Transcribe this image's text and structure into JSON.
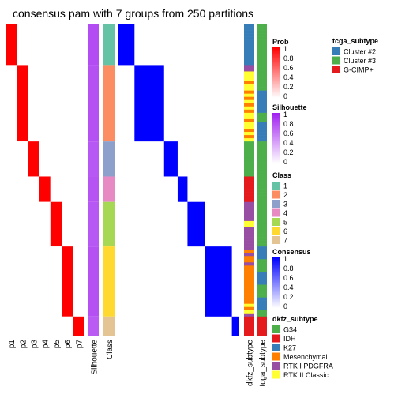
{
  "chart_data": {
    "type": "heatmap",
    "title": "consensus pam with 7 groups from 250 partitions",
    "columns": [
      "p1",
      "p2",
      "p3",
      "p4",
      "p5",
      "p6",
      "p7",
      "Silhouette",
      "Class",
      "dkfz_subtype",
      "tcga_subtype"
    ],
    "groups": [
      {
        "class": "1",
        "p": [
          1,
          0,
          0,
          0,
          0,
          0,
          0
        ],
        "silhouette": 0.8,
        "rows": 13
      },
      {
        "class": "2",
        "p": [
          0,
          1,
          0,
          0,
          0,
          0,
          0
        ],
        "silhouette": 0.78,
        "rows": 24
      },
      {
        "class": "3",
        "p": [
          0,
          0,
          1,
          0,
          0,
          0,
          0
        ],
        "silhouette": 0.75,
        "rows": 11
      },
      {
        "class": "4",
        "p": [
          0,
          0,
          0,
          1,
          0,
          0,
          0
        ],
        "silhouette": 0.77,
        "rows": 8
      },
      {
        "class": "5",
        "p": [
          0,
          0,
          0,
          0,
          1,
          0,
          0
        ],
        "silhouette": 0.75,
        "rows": 14
      },
      {
        "class": "6",
        "p": [
          0,
          0,
          0,
          0,
          0,
          1,
          0
        ],
        "silhouette": 0.78,
        "rows": 22
      },
      {
        "class": "7",
        "p": [
          0,
          0,
          0,
          0,
          0,
          0,
          1
        ],
        "silhouette": 0.73,
        "rows": 6
      }
    ],
    "dkfz_sequence": [
      "K27",
      "K27",
      "K27",
      "K27",
      "K27",
      "K27",
      "K27",
      "K27",
      "K27",
      "K27",
      "K27",
      "K27",
      "K27",
      "RTK I PDGFRA",
      "RTK I PDGFRA",
      "RTK II Classic",
      "RTK II Classic",
      "RTK II Classic",
      "Mesenchymal",
      "RTK II Classic",
      "RTK II Classic",
      "Mesenchymal",
      "RTK II Classic",
      "Mesenchymal",
      "RTK II Classic",
      "Mesenchymal",
      "RTK II Classic",
      "Mesenchymal",
      "RTK II Classic",
      "RTK II Classic",
      "Mesenchymal",
      "RTK II Classic",
      "RTK II Classic",
      "Mesenchymal",
      "RTK II Classic",
      "Mesenchymal",
      "RTK II Classic",
      "G34",
      "G34",
      "G34",
      "G34",
      "G34",
      "G34",
      "G34",
      "G34",
      "G34",
      "G34",
      "G34",
      "IDH",
      "IDH",
      "IDH",
      "IDH",
      "IDH",
      "IDH",
      "IDH",
      "IDH",
      "RTK I PDGFRA",
      "RTK I PDGFRA",
      "RTK I PDGFRA",
      "RTK I PDGFRA",
      "RTK I PDGFRA",
      "RTK I PDGFRA",
      "RTK II Classic",
      "RTK II Classic",
      "RTK I PDGFRA",
      "RTK I PDGFRA",
      "RTK I PDGFRA",
      "RTK I PDGFRA",
      "RTK I PDGFRA",
      "RTK I PDGFRA",
      "RTK I PDGFRA",
      "Mesenchymal",
      "RTK I PDGFRA",
      "Mesenchymal",
      "Mesenchymal",
      "RTK I PDGFRA",
      "Mesenchymal",
      "Mesenchymal",
      "Mesenchymal",
      "Mesenchymal",
      "Mesenchymal",
      "Mesenchymal",
      "Mesenchymal",
      "Mesenchymal",
      "Mesenchymal",
      "Mesenchymal",
      "Mesenchymal",
      "Mesenchymal",
      "RTK II Classic",
      "Mesenchymal",
      "RTK II Classic",
      "RTK I PDGFRA",
      "IDH",
      "IDH",
      "IDH",
      "IDH",
      "IDH",
      "IDH"
    ],
    "tcga_sequence": [
      "Cluster #3",
      "Cluster #3",
      "Cluster #3",
      "Cluster #3",
      "Cluster #3",
      "Cluster #3",
      "Cluster #3",
      "Cluster #3",
      "Cluster #3",
      "Cluster #3",
      "Cluster #3",
      "Cluster #3",
      "Cluster #3",
      "Cluster #3",
      "Cluster #3",
      "Cluster #3",
      "Cluster #3",
      "Cluster #3",
      "Cluster #3",
      "Cluster #3",
      "Cluster #3",
      "Cluster #2",
      "Cluster #2",
      "Cluster #2",
      "Cluster #2",
      "Cluster #2",
      "Cluster #2",
      "Cluster #2",
      "Cluster #3",
      "Cluster #3",
      "Cluster #3",
      "Cluster #2",
      "Cluster #2",
      "Cluster #2",
      "Cluster #2",
      "Cluster #2",
      "Cluster #2",
      "Cluster #3",
      "Cluster #3",
      "Cluster #3",
      "Cluster #3",
      "Cluster #3",
      "Cluster #3",
      "Cluster #3",
      "Cluster #3",
      "Cluster #3",
      "Cluster #3",
      "Cluster #3",
      "Cluster #3",
      "Cluster #3",
      "Cluster #3",
      "Cluster #3",
      "Cluster #3",
      "Cluster #3",
      "Cluster #3",
      "Cluster #3",
      "Cluster #3",
      "Cluster #3",
      "Cluster #3",
      "Cluster #3",
      "Cluster #3",
      "Cluster #3",
      "Cluster #3",
      "Cluster #3",
      "Cluster #3",
      "Cluster #3",
      "Cluster #3",
      "Cluster #3",
      "Cluster #3",
      "Cluster #3",
      "Cluster #2",
      "Cluster #2",
      "Cluster #2",
      "Cluster #2",
      "Cluster #3",
      "Cluster #3",
      "Cluster #3",
      "Cluster #3",
      "Cluster #2",
      "Cluster #2",
      "Cluster #2",
      "Cluster #2",
      "Cluster #3",
      "Cluster #3",
      "Cluster #3",
      "Cluster #3",
      "Cluster #2",
      "Cluster #2",
      "Cluster #2",
      "Cluster #2",
      "Cluster #3",
      "Cluster #3",
      "G-CIMP+",
      "G-CIMP+",
      "G-CIMP+",
      "G-CIMP+",
      "G-CIMP+",
      "G-CIMP+"
    ],
    "legends": {
      "tcga_subtype": {
        "title": "tcga_subtype",
        "items": [
          {
            "label": "Cluster #2",
            "color": "#377EB8"
          },
          {
            "label": "Cluster #3",
            "color": "#4DAF4A"
          },
          {
            "label": "G-CIMP+",
            "color": "#E41A1C"
          }
        ]
      },
      "prob": {
        "title": "Prob",
        "ticks": [
          "1",
          "0.8",
          "0.6",
          "0.4",
          "0.2",
          "0"
        ],
        "colors": [
          "#FF0000",
          "#FFFFFF"
        ]
      },
      "silhouette": {
        "title": "Silhouette",
        "ticks": [
          "1",
          "0.8",
          "0.6",
          "0.4",
          "0.2",
          "0"
        ],
        "colors": [
          "#A020F0",
          "#FFFFFF"
        ]
      },
      "class": {
        "title": "Class",
        "items": [
          {
            "label": "1",
            "color": "#66C2A5"
          },
          {
            "label": "2",
            "color": "#FC8D62"
          },
          {
            "label": "3",
            "color": "#8DA0CB"
          },
          {
            "label": "4",
            "color": "#E78AC3"
          },
          {
            "label": "5",
            "color": "#A6D854"
          },
          {
            "label": "6",
            "color": "#FFD92F"
          },
          {
            "label": "7",
            "color": "#E5C494"
          }
        ]
      },
      "consensus": {
        "title": "Consensus",
        "ticks": [
          "1",
          "0.8",
          "0.6",
          "0.4",
          "0.2",
          "0"
        ],
        "colors": [
          "#0000FF",
          "#FFFFFF"
        ]
      },
      "dkfz_subtype": {
        "title": "dkfz_subtype",
        "items": [
          {
            "label": "G34",
            "color": "#4DAF4A"
          },
          {
            "label": "IDH",
            "color": "#E41A1C"
          },
          {
            "label": "K27",
            "color": "#377EB8"
          },
          {
            "label": "Mesenchymal",
            "color": "#FF7F00"
          },
          {
            "label": "RTK I PDGFRA",
            "color": "#984EA3"
          },
          {
            "label": "RTK II Classic",
            "color": "#FFFF33"
          }
        ]
      }
    }
  }
}
